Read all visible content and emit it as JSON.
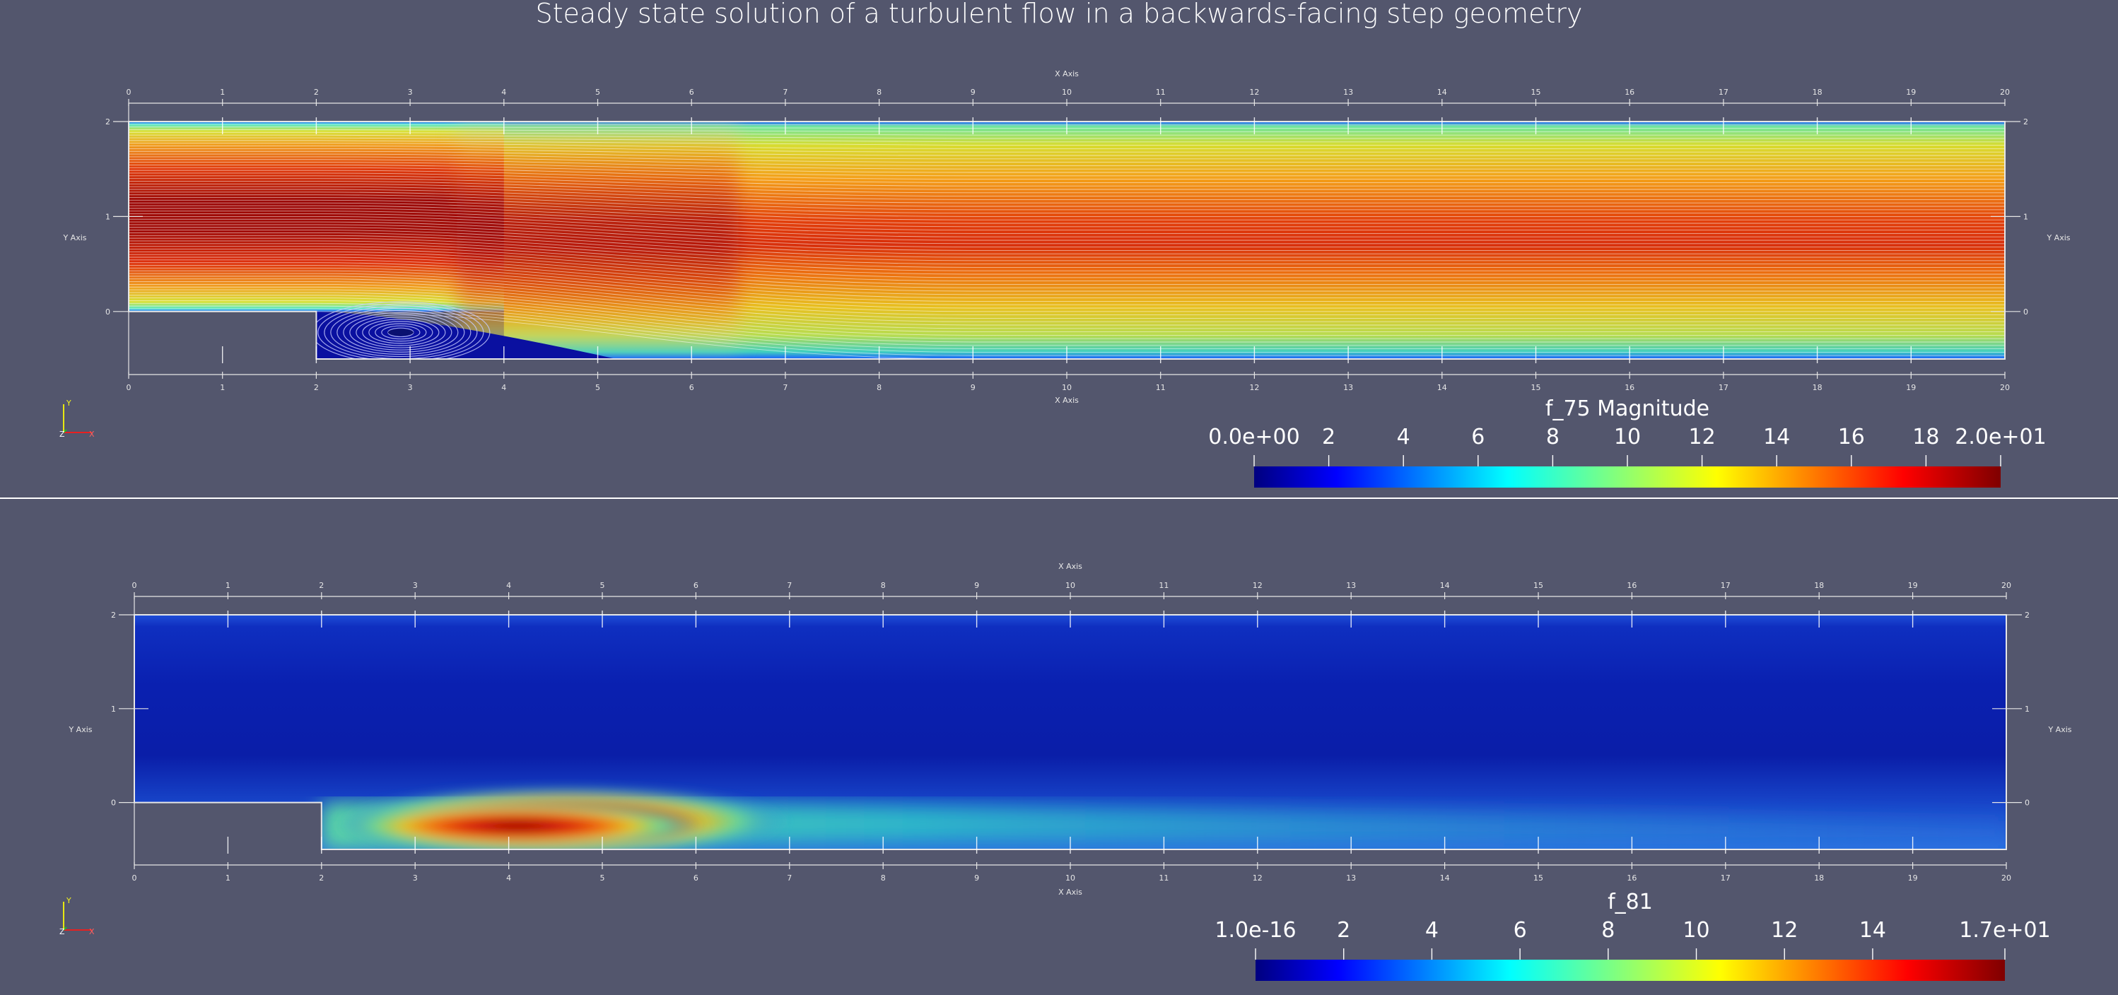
{
  "title": "Steady state solution of a turbulent flow in a backwards-facing step geometry",
  "axes": {
    "x_title": "X Axis",
    "y_title": "Y Axis",
    "x_ticks": [
      "0",
      "1",
      "2",
      "3",
      "4",
      "5",
      "6",
      "7",
      "8",
      "9",
      "10",
      "11",
      "12",
      "13",
      "14",
      "15",
      "16",
      "17",
      "18",
      "19",
      "20"
    ],
    "y_ticks": [
      "0",
      "1",
      "2"
    ],
    "x_range": [
      0,
      20
    ],
    "y_range": [
      -0.5,
      2
    ],
    "step": {
      "x": 2,
      "y": 0
    }
  },
  "orientation_axes": {
    "y": "Y",
    "z": "Z",
    "x": "X"
  },
  "colors": {
    "background": "#53566d",
    "axis_grid": "#e6e6e6",
    "divider": "#ffffff"
  },
  "panels": [
    {
      "id": "top",
      "field": "f_75 Magnitude",
      "display": "streamlines",
      "colorbar": {
        "labels": [
          "0.0e+00",
          "2",
          "4",
          "6",
          "8",
          "10",
          "12",
          "14",
          "16",
          "18",
          "2.0e+01"
        ],
        "min": 0,
        "max": 20,
        "colormap": "rainbow-jet"
      }
    },
    {
      "id": "bottom",
      "field": "f_81",
      "display": "surface",
      "colorbar": {
        "labels": [
          "1.0e-16",
          "2",
          "4",
          "6",
          "8",
          "10",
          "12",
          "14",
          "1.7e+01"
        ],
        "min": 0,
        "max": 17,
        "colormap": "rainbow-jet"
      }
    }
  ]
}
